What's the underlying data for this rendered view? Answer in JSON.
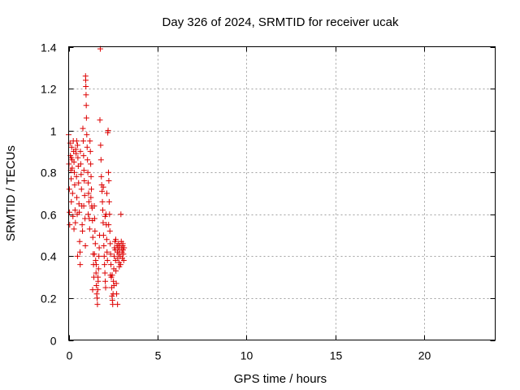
{
  "chart_data": {
    "type": "scatter",
    "title": "Day 326 of 2024, SRMTID for receiver ucak",
    "xlabel": "GPS time / hours",
    "ylabel": "SRMTID / TECUs",
    "xlim": [
      0,
      24
    ],
    "ylim": [
      0,
      1.4
    ],
    "xticks": [
      0,
      5,
      10,
      15,
      20
    ],
    "xtick_labels": [
      "0",
      "5",
      "10",
      "15",
      "20"
    ],
    "yticks": [
      0,
      0.2,
      0.4,
      0.6,
      0.8,
      1.0,
      1.2,
      1.4
    ],
    "ytick_labels": [
      "0",
      "0.2",
      "0.4",
      "0.6",
      "0.8",
      "1",
      "1.2",
      "1.4"
    ],
    "grid": true,
    "marker": "+",
    "color": "#dd0000",
    "series": [
      {
        "name": "ucak",
        "points": [
          [
            0.0,
            0.98
          ],
          [
            0.02,
            0.84
          ],
          [
            0.04,
            0.72
          ],
          [
            0.05,
            0.61
          ],
          [
            0.06,
            0.55
          ],
          [
            0.08,
            0.94
          ],
          [
            0.1,
            0.88
          ],
          [
            0.12,
            0.81
          ],
          [
            0.14,
            0.77
          ],
          [
            0.15,
            0.66
          ],
          [
            0.17,
            0.92
          ],
          [
            0.19,
            0.86
          ],
          [
            0.2,
            0.82
          ],
          [
            0.22,
            0.7
          ],
          [
            0.24,
            0.59
          ],
          [
            0.26,
            0.95
          ],
          [
            0.28,
            0.9
          ],
          [
            0.3,
            0.85
          ],
          [
            0.32,
            0.8
          ],
          [
            0.34,
            0.74
          ],
          [
            0.36,
            0.62
          ],
          [
            0.38,
            0.56
          ],
          [
            0.4,
            0.91
          ],
          [
            0.42,
            0.89
          ],
          [
            0.44,
            0.78
          ],
          [
            0.46,
            0.68
          ],
          [
            0.48,
            0.6
          ],
          [
            0.5,
            0.93
          ],
          [
            0.52,
            0.87
          ],
          [
            0.54,
            0.83
          ],
          [
            0.56,
            0.75
          ],
          [
            0.58,
            0.65
          ],
          [
            0.6,
            0.61
          ],
          [
            0.62,
            0.47
          ],
          [
            0.64,
            0.42
          ],
          [
            0.66,
            0.9
          ],
          [
            0.68,
            0.84
          ],
          [
            0.7,
            0.79
          ],
          [
            0.72,
            0.72
          ],
          [
            0.74,
            0.64
          ],
          [
            0.76,
            0.55
          ],
          [
            0.78,
            0.52
          ],
          [
            0.8,
            1.01
          ],
          [
            0.82,
            0.95
          ],
          [
            0.84,
            0.88
          ],
          [
            0.86,
            0.81
          ],
          [
            0.88,
            0.76
          ],
          [
            0.9,
            0.69
          ],
          [
            0.92,
            0.58
          ],
          [
            0.94,
            0.45
          ],
          [
            0.95,
            1.26
          ],
          [
            0.96,
            1.24
          ],
          [
            0.97,
            1.21
          ],
          [
            0.98,
            1.17
          ],
          [
            0.99,
            1.12
          ],
          [
            1.0,
            1.06
          ],
          [
            1.02,
            0.98
          ],
          [
            1.04,
            0.92
          ],
          [
            1.06,
            0.86
          ],
          [
            1.08,
            0.8
          ],
          [
            1.1,
            0.75
          ],
          [
            1.12,
            0.7
          ],
          [
            1.14,
            0.66
          ],
          [
            1.16,
            0.58
          ],
          [
            1.18,
            0.53
          ],
          [
            1.2,
            0.95
          ],
          [
            1.22,
            0.9
          ],
          [
            1.24,
            0.84
          ],
          [
            1.26,
            0.78
          ],
          [
            1.28,
            0.72
          ],
          [
            1.3,
            0.64
          ],
          [
            1.32,
            0.63
          ],
          [
            1.34,
            0.57
          ],
          [
            1.36,
            0.49
          ],
          [
            1.38,
            0.41
          ],
          [
            1.4,
            0.36
          ],
          [
            1.42,
            0.3
          ],
          [
            1.44,
            0.64
          ],
          [
            1.46,
            0.58
          ],
          [
            1.48,
            0.52
          ],
          [
            1.5,
            0.46
          ],
          [
            1.52,
            0.38
          ],
          [
            1.54,
            0.32
          ],
          [
            1.56,
            0.26
          ],
          [
            1.58,
            0.22
          ],
          [
            1.6,
            0.2
          ],
          [
            1.62,
            0.17
          ],
          [
            1.64,
            0.24
          ],
          [
            1.66,
            0.28
          ],
          [
            1.68,
            0.34
          ],
          [
            1.7,
            0.4
          ],
          [
            1.72,
            0.44
          ],
          [
            1.74,
            0.5
          ],
          [
            1.76,
            1.05
          ],
          [
            1.78,
            1.39
          ],
          [
            1.8,
            0.93
          ],
          [
            1.82,
            0.86
          ],
          [
            1.84,
            0.78
          ],
          [
            1.86,
            0.74
          ],
          [
            1.88,
            0.71
          ],
          [
            1.9,
            0.66
          ],
          [
            1.92,
            0.62
          ],
          [
            1.94,
            0.56
          ],
          [
            1.96,
            0.5
          ],
          [
            1.98,
            0.45
          ],
          [
            2.0,
            0.4
          ],
          [
            2.02,
            0.36
          ],
          [
            2.04,
            0.32
          ],
          [
            2.06,
            0.28
          ],
          [
            2.08,
            0.25
          ],
          [
            2.1,
            0.6
          ],
          [
            2.12,
            0.55
          ],
          [
            2.14,
            0.48
          ],
          [
            2.16,
            0.42
          ],
          [
            2.18,
            0.38
          ],
          [
            2.2,
            0.99
          ],
          [
            2.22,
            1.0
          ],
          [
            2.24,
            0.8
          ],
          [
            2.26,
            0.76
          ],
          [
            2.28,
            0.66
          ],
          [
            2.3,
            0.6
          ],
          [
            2.32,
            0.52
          ],
          [
            2.34,
            0.46
          ],
          [
            2.36,
            0.41
          ],
          [
            2.38,
            0.36
          ],
          [
            2.4,
            0.3
          ],
          [
            2.42,
            0.25
          ],
          [
            2.44,
            0.21
          ],
          [
            2.46,
            0.19
          ],
          [
            2.48,
            0.17
          ],
          [
            2.5,
            0.22
          ],
          [
            2.52,
            0.28
          ],
          [
            2.54,
            0.34
          ],
          [
            2.56,
            0.4
          ],
          [
            2.58,
            0.44
          ],
          [
            2.6,
            0.47
          ],
          [
            2.62,
            0.43
          ],
          [
            2.64,
            0.38
          ],
          [
            2.66,
            0.33
          ],
          [
            2.68,
            0.27
          ],
          [
            2.7,
            0.22
          ],
          [
            2.72,
            0.45
          ],
          [
            2.74,
            0.42
          ],
          [
            2.76,
            0.39
          ],
          [
            2.78,
            0.44
          ],
          [
            2.8,
            0.46
          ],
          [
            2.82,
            0.41
          ],
          [
            2.84,
            0.37
          ],
          [
            2.86,
            0.43
          ],
          [
            2.88,
            0.45
          ],
          [
            2.9,
            0.4
          ],
          [
            2.92,
            0.36
          ],
          [
            2.94,
            0.6
          ],
          [
            2.96,
            0.47
          ],
          [
            2.98,
            0.44
          ],
          [
            3.0,
            0.42
          ],
          [
            3.02,
            0.39
          ],
          [
            3.04,
            0.45
          ],
          [
            3.06,
            0.43
          ],
          [
            3.08,
            0.41
          ],
          [
            3.1,
            0.38
          ],
          [
            3.12,
            0.44
          ],
          [
            0.5,
            0.4
          ],
          [
            0.3,
            0.53
          ],
          [
            0.65,
            0.36
          ],
          [
            1.1,
            0.6
          ],
          [
            1.35,
            0.24
          ],
          [
            1.55,
            0.36
          ],
          [
            2.05,
            0.59
          ],
          [
            2.35,
            0.31
          ],
          [
            2.55,
            0.26
          ],
          [
            2.15,
            0.7
          ],
          [
            1.25,
            0.68
          ],
          [
            0.85,
            0.64
          ],
          [
            0.15,
            0.87
          ],
          [
            0.45,
            0.95
          ],
          [
            1.45,
            0.41
          ],
          [
            2.25,
            0.55
          ],
          [
            2.65,
            0.48
          ],
          [
            2.85,
            0.35
          ],
          [
            3.05,
            0.46
          ],
          [
            2.45,
            0.31
          ],
          [
            2.75,
            0.17
          ],
          [
            1.65,
            0.3
          ],
          [
            1.95,
            0.73
          ]
        ]
      }
    ]
  }
}
